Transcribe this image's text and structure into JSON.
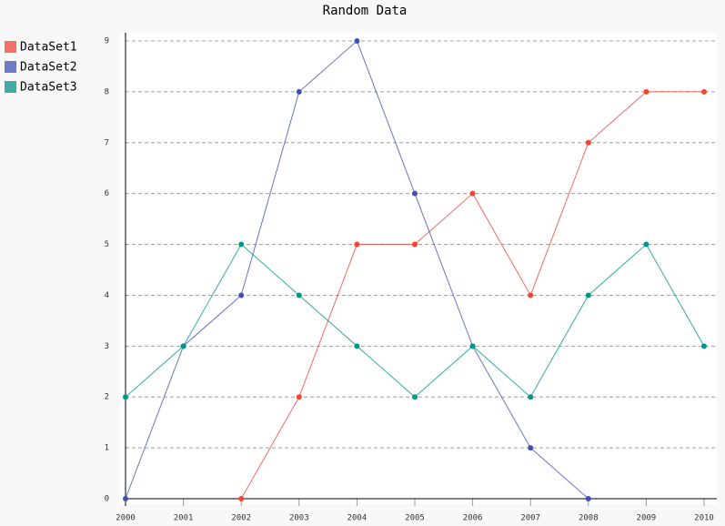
{
  "chart_data": {
    "type": "line",
    "title": "Random Data",
    "categories": [
      "2000",
      "2001",
      "2002",
      "2003",
      "2004",
      "2005",
      "2006",
      "2007",
      "2008",
      "2009",
      "2010"
    ],
    "series": [
      {
        "name": "DataSet1",
        "color": "#f44336",
        "values": [
          null,
          null,
          0,
          2,
          5,
          5,
          6,
          4,
          7,
          8,
          8
        ]
      },
      {
        "name": "DataSet2",
        "color": "#3f51b5",
        "values": [
          0,
          3,
          4,
          8,
          9,
          6,
          3,
          1,
          0,
          null,
          null
        ]
      },
      {
        "name": "DataSet3",
        "color": "#009688",
        "values": [
          2,
          3,
          5,
          4,
          3,
          2,
          3,
          2,
          4,
          5,
          3
        ]
      }
    ],
    "ylim": [
      0,
      9
    ],
    "yticks": [
      0,
      1,
      2,
      3,
      4,
      5,
      6,
      7,
      8,
      9
    ],
    "grid": true,
    "legend": "top-left"
  }
}
